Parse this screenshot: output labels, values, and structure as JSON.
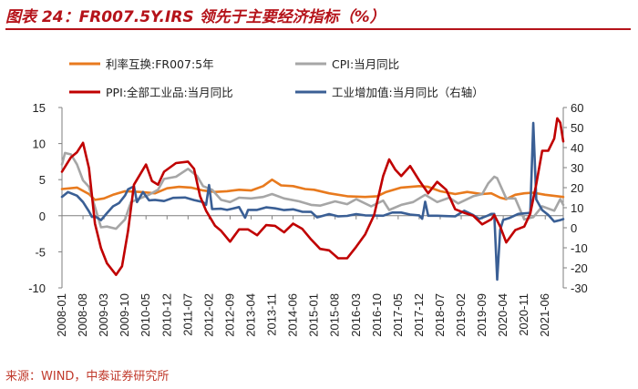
{
  "title": "图表 24：FR007.5Y.IRS 领先于主要经济指标（%）",
  "source": "来源：WIND，中泰证券研究所",
  "colors": {
    "irs": "#E87A1E",
    "cpi": "#A6A6A6",
    "ppi": "#C00000",
    "ip": "#3A5F95",
    "accent": "#B5131A"
  },
  "chart_data": {
    "type": "line",
    "title": "FR007.5Y.IRS 领先于主要经济指标（%）",
    "x_start": "2008-01",
    "x_end": "2021-12",
    "x_tick_labels": [
      "2008-01",
      "2008-08",
      "2009-03",
      "2009-10",
      "2010-05",
      "2010-12",
      "2011-07",
      "2012-02",
      "2012-09",
      "2013-04",
      "2013-11",
      "2014-06",
      "2015-01",
      "2015-08",
      "2016-03",
      "2016-10",
      "2017-05",
      "2017-12",
      "2018-07",
      "2019-02",
      "2019-09",
      "2020-04",
      "2020-11",
      "2021-06"
    ],
    "y_left": {
      "min": -10,
      "max": 15,
      "ticks": [
        15,
        10,
        5,
        0,
        -5,
        -10
      ]
    },
    "y_right": {
      "min": -30,
      "max": 60,
      "ticks": [
        60,
        50,
        40,
        30,
        20,
        10,
        0,
        -10,
        -20,
        -30
      ]
    },
    "series": [
      {
        "name": "利率互换:FR007:5年",
        "axis": "left",
        "color": "#E87A1E",
        "points": [
          [
            "2008-01",
            3.7
          ],
          [
            "2008-06",
            3.9
          ],
          [
            "2008-10",
            3.0
          ],
          [
            "2008-12",
            2.2
          ],
          [
            "2009-03",
            2.4
          ],
          [
            "2009-06",
            2.9
          ],
          [
            "2009-10",
            3.4
          ],
          [
            "2010-03",
            3.3
          ],
          [
            "2010-08",
            3.1
          ],
          [
            "2010-12",
            3.8
          ],
          [
            "2011-04",
            4.0
          ],
          [
            "2011-08",
            3.9
          ],
          [
            "2011-12",
            3.5
          ],
          [
            "2012-04",
            3.3
          ],
          [
            "2012-08",
            3.4
          ],
          [
            "2012-12",
            3.6
          ],
          [
            "2013-04",
            3.5
          ],
          [
            "2013-08",
            4.1
          ],
          [
            "2013-11",
            5.0
          ],
          [
            "2014-02",
            4.2
          ],
          [
            "2014-06",
            4.1
          ],
          [
            "2014-10",
            3.7
          ],
          [
            "2015-01",
            3.6
          ],
          [
            "2015-06",
            3.1
          ],
          [
            "2015-12",
            2.7
          ],
          [
            "2016-06",
            2.6
          ],
          [
            "2016-10",
            2.7
          ],
          [
            "2017-01",
            3.3
          ],
          [
            "2017-06",
            3.9
          ],
          [
            "2017-12",
            4.1
          ],
          [
            "2018-03",
            4.0
          ],
          [
            "2018-07",
            3.4
          ],
          [
            "2018-12",
            3.0
          ],
          [
            "2019-04",
            3.3
          ],
          [
            "2019-09",
            3.0
          ],
          [
            "2019-12",
            3.1
          ],
          [
            "2020-03",
            2.5
          ],
          [
            "2020-05",
            2.3
          ],
          [
            "2020-08",
            2.9
          ],
          [
            "2020-11",
            3.1
          ],
          [
            "2021-02",
            3.2
          ],
          [
            "2021-06",
            2.9
          ],
          [
            "2021-12",
            2.6
          ]
        ]
      },
      {
        "name": "CPI:当月同比",
        "axis": "left",
        "color": "#A6A6A6",
        "points": [
          [
            "2008-01",
            7.1
          ],
          [
            "2008-02",
            8.7
          ],
          [
            "2008-04",
            8.5
          ],
          [
            "2008-06",
            7.1
          ],
          [
            "2008-08",
            4.9
          ],
          [
            "2008-10",
            4.0
          ],
          [
            "2008-12",
            1.2
          ],
          [
            "2009-02",
            -1.6
          ],
          [
            "2009-04",
            -1.5
          ],
          [
            "2009-07",
            -1.8
          ],
          [
            "2009-10",
            -0.5
          ],
          [
            "2009-12",
            1.9
          ],
          [
            "2010-03",
            2.4
          ],
          [
            "2010-06",
            2.9
          ],
          [
            "2010-09",
            3.6
          ],
          [
            "2010-11",
            5.1
          ],
          [
            "2011-03",
            5.4
          ],
          [
            "2011-07",
            6.5
          ],
          [
            "2011-10",
            5.5
          ],
          [
            "2011-12",
            4.1
          ],
          [
            "2012-03",
            3.6
          ],
          [
            "2012-06",
            2.2
          ],
          [
            "2012-09",
            1.9
          ],
          [
            "2012-12",
            2.5
          ],
          [
            "2013-04",
            2.4
          ],
          [
            "2013-08",
            2.6
          ],
          [
            "2013-11",
            3.0
          ],
          [
            "2014-03",
            2.4
          ],
          [
            "2014-08",
            2.0
          ],
          [
            "2014-12",
            1.5
          ],
          [
            "2015-03",
            1.4
          ],
          [
            "2015-08",
            2.0
          ],
          [
            "2015-12",
            1.6
          ],
          [
            "2016-03",
            2.3
          ],
          [
            "2016-08",
            1.3
          ],
          [
            "2016-12",
            2.1
          ],
          [
            "2017-02",
            0.8
          ],
          [
            "2017-06",
            1.5
          ],
          [
            "2017-10",
            1.9
          ],
          [
            "2018-02",
            2.9
          ],
          [
            "2018-06",
            1.9
          ],
          [
            "2018-10",
            2.5
          ],
          [
            "2019-01",
            1.7
          ],
          [
            "2019-06",
            2.7
          ],
          [
            "2019-09",
            3.0
          ],
          [
            "2019-11",
            4.5
          ],
          [
            "2020-01",
            5.4
          ],
          [
            "2020-02",
            5.2
          ],
          [
            "2020-05",
            2.4
          ],
          [
            "2020-08",
            2.4
          ],
          [
            "2020-11",
            -0.5
          ],
          [
            "2021-02",
            -0.2
          ],
          [
            "2021-05",
            1.3
          ],
          [
            "2021-09",
            0.7
          ],
          [
            "2021-11",
            2.3
          ],
          [
            "2021-12",
            1.5
          ]
        ]
      },
      {
        "name": "PPI:全部工业品:当月同比",
        "axis": "left",
        "color": "#C00000",
        "points": [
          [
            "2008-01",
            6.1
          ],
          [
            "2008-04",
            8.1
          ],
          [
            "2008-06",
            8.8
          ],
          [
            "2008-08",
            10.1
          ],
          [
            "2008-10",
            6.6
          ],
          [
            "2008-12",
            -1.1
          ],
          [
            "2009-02",
            -4.5
          ],
          [
            "2009-04",
            -6.6
          ],
          [
            "2009-07",
            -8.2
          ],
          [
            "2009-09",
            -7.0
          ],
          [
            "2009-11",
            -2.1
          ],
          [
            "2010-01",
            4.3
          ],
          [
            "2010-05",
            7.1
          ],
          [
            "2010-07",
            4.8
          ],
          [
            "2010-09",
            4.3
          ],
          [
            "2010-11",
            6.1
          ],
          [
            "2011-03",
            7.3
          ],
          [
            "2011-07",
            7.5
          ],
          [
            "2011-09",
            6.5
          ],
          [
            "2011-11",
            2.7
          ],
          [
            "2012-01",
            0.7
          ],
          [
            "2012-04",
            -1.4
          ],
          [
            "2012-06",
            -2.1
          ],
          [
            "2012-09",
            -3.6
          ],
          [
            "2012-12",
            -1.9
          ],
          [
            "2013-03",
            -1.9
          ],
          [
            "2013-06",
            -2.7
          ],
          [
            "2013-09",
            -1.3
          ],
          [
            "2013-12",
            -1.4
          ],
          [
            "2014-03",
            -2.3
          ],
          [
            "2014-06",
            -1.1
          ],
          [
            "2014-09",
            -1.8
          ],
          [
            "2014-12",
            -3.3
          ],
          [
            "2015-03",
            -4.6
          ],
          [
            "2015-06",
            -4.8
          ],
          [
            "2015-09",
            -5.9
          ],
          [
            "2015-12",
            -5.9
          ],
          [
            "2016-03",
            -4.3
          ],
          [
            "2016-06",
            -2.6
          ],
          [
            "2016-09",
            0.1
          ],
          [
            "2016-12",
            5.5
          ],
          [
            "2017-02",
            7.8
          ],
          [
            "2017-04",
            6.4
          ],
          [
            "2017-06",
            5.5
          ],
          [
            "2017-09",
            6.9
          ],
          [
            "2017-12",
            4.9
          ],
          [
            "2018-03",
            3.1
          ],
          [
            "2018-06",
            4.7
          ],
          [
            "2018-09",
            3.6
          ],
          [
            "2018-12",
            0.9
          ],
          [
            "2019-03",
            0.4
          ],
          [
            "2019-06",
            0.0
          ],
          [
            "2019-09",
            -1.2
          ],
          [
            "2019-12",
            -0.5
          ],
          [
            "2020-01",
            0.1
          ],
          [
            "2020-03",
            -1.5
          ],
          [
            "2020-05",
            -3.7
          ],
          [
            "2020-08",
            -2.0
          ],
          [
            "2020-11",
            -1.5
          ],
          [
            "2021-01",
            0.3
          ],
          [
            "2021-03",
            4.4
          ],
          [
            "2021-05",
            9.0
          ],
          [
            "2021-07",
            9.0
          ],
          [
            "2021-09",
            10.7
          ],
          [
            "2021-10",
            13.5
          ],
          [
            "2021-11",
            12.9
          ],
          [
            "2021-12",
            10.3
          ]
        ]
      },
      {
        "name": "工业增加值:当月同比（右轴）",
        "axis": "right",
        "color": "#3A5F95",
        "points": [
          [
            "2008-01",
            15.4
          ],
          [
            "2008-03",
            17.8
          ],
          [
            "2008-06",
            16.0
          ],
          [
            "2008-08",
            12.8
          ],
          [
            "2008-10",
            8.2
          ],
          [
            "2008-11",
            5.4
          ],
          [
            "2008-12",
            5.7
          ],
          [
            "2009-02",
            3.8
          ],
          [
            "2009-04",
            7.3
          ],
          [
            "2009-06",
            10.7
          ],
          [
            "2009-08",
            12.3
          ],
          [
            "2009-10",
            16.1
          ],
          [
            "2009-11",
            19.2
          ],
          [
            "2010-01",
            20.7
          ],
          [
            "2010-02",
            12.8
          ],
          [
            "2010-04",
            17.8
          ],
          [
            "2010-06",
            13.7
          ],
          [
            "2010-08",
            13.9
          ],
          [
            "2010-11",
            13.3
          ],
          [
            "2011-02",
            14.9
          ],
          [
            "2011-06",
            15.1
          ],
          [
            "2011-09",
            13.8
          ],
          [
            "2011-12",
            12.8
          ],
          [
            "2012-01",
            11.4
          ],
          [
            "2012-02",
            21.3
          ],
          [
            "2012-03",
            9.3
          ],
          [
            "2012-06",
            9.5
          ],
          [
            "2012-08",
            8.9
          ],
          [
            "2012-10",
            9.6
          ],
          [
            "2012-12",
            10.3
          ],
          [
            "2013-02",
            5.0
          ],
          [
            "2013-03",
            8.9
          ],
          [
            "2013-06",
            8.9
          ],
          [
            "2013-09",
            10.2
          ],
          [
            "2013-12",
            9.7
          ],
          [
            "2014-03",
            8.8
          ],
          [
            "2014-06",
            9.2
          ],
          [
            "2014-09",
            8.0
          ],
          [
            "2014-12",
            7.9
          ],
          [
            "2015-02",
            5.2
          ],
          [
            "2015-03",
            5.6
          ],
          [
            "2015-06",
            6.8
          ],
          [
            "2015-09",
            5.7
          ],
          [
            "2015-12",
            5.9
          ],
          [
            "2016-03",
            6.8
          ],
          [
            "2016-06",
            6.2
          ],
          [
            "2016-09",
            6.1
          ],
          [
            "2016-12",
            6.0
          ],
          [
            "2017-03",
            7.6
          ],
          [
            "2017-06",
            7.6
          ],
          [
            "2017-09",
            6.6
          ],
          [
            "2017-12",
            6.2
          ],
          [
            "2018-01",
            4.5
          ],
          [
            "2018-02",
            13.0
          ],
          [
            "2018-03",
            6.0
          ],
          [
            "2018-06",
            6.0
          ],
          [
            "2018-09",
            5.8
          ],
          [
            "2018-12",
            5.7
          ],
          [
            "2019-03",
            8.5
          ],
          [
            "2019-06",
            6.3
          ],
          [
            "2019-08",
            4.4
          ],
          [
            "2019-11",
            6.2
          ],
          [
            "2019-12",
            6.9
          ],
          [
            "2020-01",
            6.9
          ],
          [
            "2020-02",
            -25.9
          ],
          [
            "2020-03",
            -1.1
          ],
          [
            "2020-04",
            3.9
          ],
          [
            "2020-06",
            4.8
          ],
          [
            "2020-09",
            6.9
          ],
          [
            "2020-12",
            7.3
          ],
          [
            "2021-01",
            7.5
          ],
          [
            "2021-02",
            52.3
          ],
          [
            "2021-03",
            14.1
          ],
          [
            "2021-05",
            8.8
          ],
          [
            "2021-07",
            6.4
          ],
          [
            "2021-09",
            3.1
          ],
          [
            "2021-11",
            3.8
          ],
          [
            "2021-12",
            4.3
          ]
        ]
      }
    ],
    "legend": [
      {
        "label": "利率互换:FR007:5年",
        "color": "#E87A1E"
      },
      {
        "label": "CPI:当月同比",
        "color": "#A6A6A6"
      },
      {
        "label": "PPI:全部工业品:当月同比",
        "color": "#C00000"
      },
      {
        "label": "工业增加值:当月同比（右轴）",
        "color": "#3A5F95"
      }
    ],
    "legend_position": "top"
  }
}
